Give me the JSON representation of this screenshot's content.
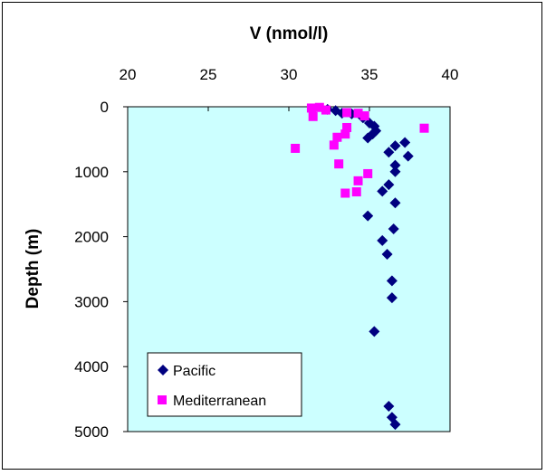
{
  "chart_data": {
    "type": "scatter",
    "title": "",
    "xlabel": "V (nmol/l)",
    "ylabel": "Depth (m)",
    "xlim": [
      20,
      40
    ],
    "ylim": [
      0,
      5000
    ],
    "y_inverted": true,
    "x_axis_position": "top",
    "x_ticks": [
      20,
      25,
      30,
      35,
      40
    ],
    "y_ticks": [
      0,
      1000,
      2000,
      3000,
      4000,
      5000
    ],
    "x_tick_labels": [
      "20",
      "25",
      "30",
      "35",
      "40"
    ],
    "y_tick_labels": [
      "0",
      "1000",
      "2000",
      "3000",
      "4000",
      "5000"
    ],
    "plot_background": "#ccffff",
    "grid": false,
    "legend_position": "bottom-left",
    "series": [
      {
        "name": "Pacific",
        "marker": "diamond",
        "color": "#000080",
        "points": [
          [
            32.4,
            40
          ],
          [
            32.9,
            60
          ],
          [
            33.3,
            100
          ],
          [
            33.9,
            110
          ],
          [
            34.6,
            170
          ],
          [
            35.0,
            250
          ],
          [
            35.3,
            300
          ],
          [
            35.4,
            370
          ],
          [
            35.2,
            420
          ],
          [
            34.9,
            480
          ],
          [
            37.2,
            550
          ],
          [
            36.6,
            600
          ],
          [
            36.2,
            700
          ],
          [
            37.4,
            760
          ],
          [
            36.6,
            900
          ],
          [
            36.6,
            1000
          ],
          [
            36.2,
            1200
          ],
          [
            35.8,
            1300
          ],
          [
            36.6,
            1480
          ],
          [
            34.9,
            1680
          ],
          [
            36.5,
            1880
          ],
          [
            35.8,
            2060
          ],
          [
            36.1,
            2270
          ],
          [
            36.4,
            2680
          ],
          [
            36.4,
            2940
          ],
          [
            35.3,
            3460
          ],
          [
            36.2,
            4610
          ],
          [
            36.4,
            4780
          ],
          [
            36.6,
            4890
          ]
        ]
      },
      {
        "name": "Mediterranean",
        "marker": "square",
        "color": "#ff00ff",
        "points": [
          [
            31.4,
            20
          ],
          [
            31.9,
            10
          ],
          [
            32.3,
            50
          ],
          [
            31.5,
            150
          ],
          [
            33.6,
            90
          ],
          [
            34.3,
            100
          ],
          [
            34.7,
            140
          ],
          [
            38.4,
            330
          ],
          [
            33.6,
            320
          ],
          [
            33.5,
            420
          ],
          [
            33.0,
            470
          ],
          [
            32.8,
            590
          ],
          [
            30.4,
            640
          ],
          [
            33.1,
            880
          ],
          [
            34.9,
            1030
          ],
          [
            34.3,
            1140
          ],
          [
            34.2,
            1310
          ],
          [
            33.5,
            1330
          ]
        ]
      }
    ]
  }
}
